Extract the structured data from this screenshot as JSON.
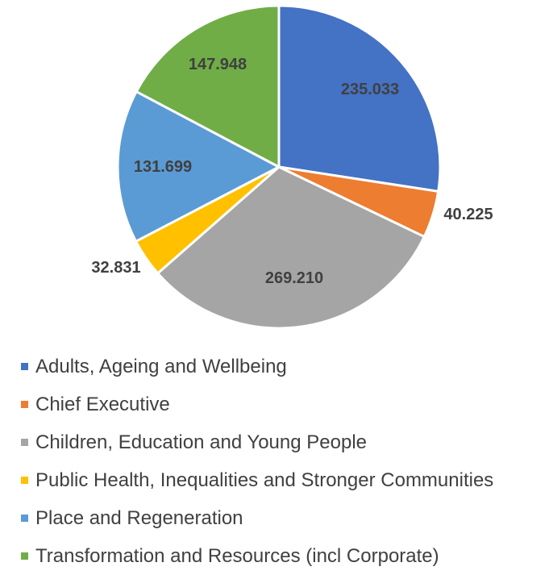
{
  "chart_data": {
    "type": "pie",
    "title": "",
    "categories": [
      "Adults, Ageing and Wellbeing",
      "Chief Executive",
      "Children, Education and Young People",
      "Public Health, Inequalities and Stronger Communities",
      "Place and Regeneration",
      "Transformation and Resources (incl Corporate)"
    ],
    "values": [
      235.033,
      40.225,
      269.21,
      32.831,
      131.699,
      147.948
    ],
    "value_labels": [
      "235.033",
      "40.225",
      "269.210",
      "32.831",
      "131.699",
      "147.948"
    ],
    "colors": [
      "#4472C4",
      "#ED7D31",
      "#A5A5A5",
      "#FFC000",
      "#5B9BD5",
      "#70AD47"
    ],
    "legend_position": "bottom"
  }
}
